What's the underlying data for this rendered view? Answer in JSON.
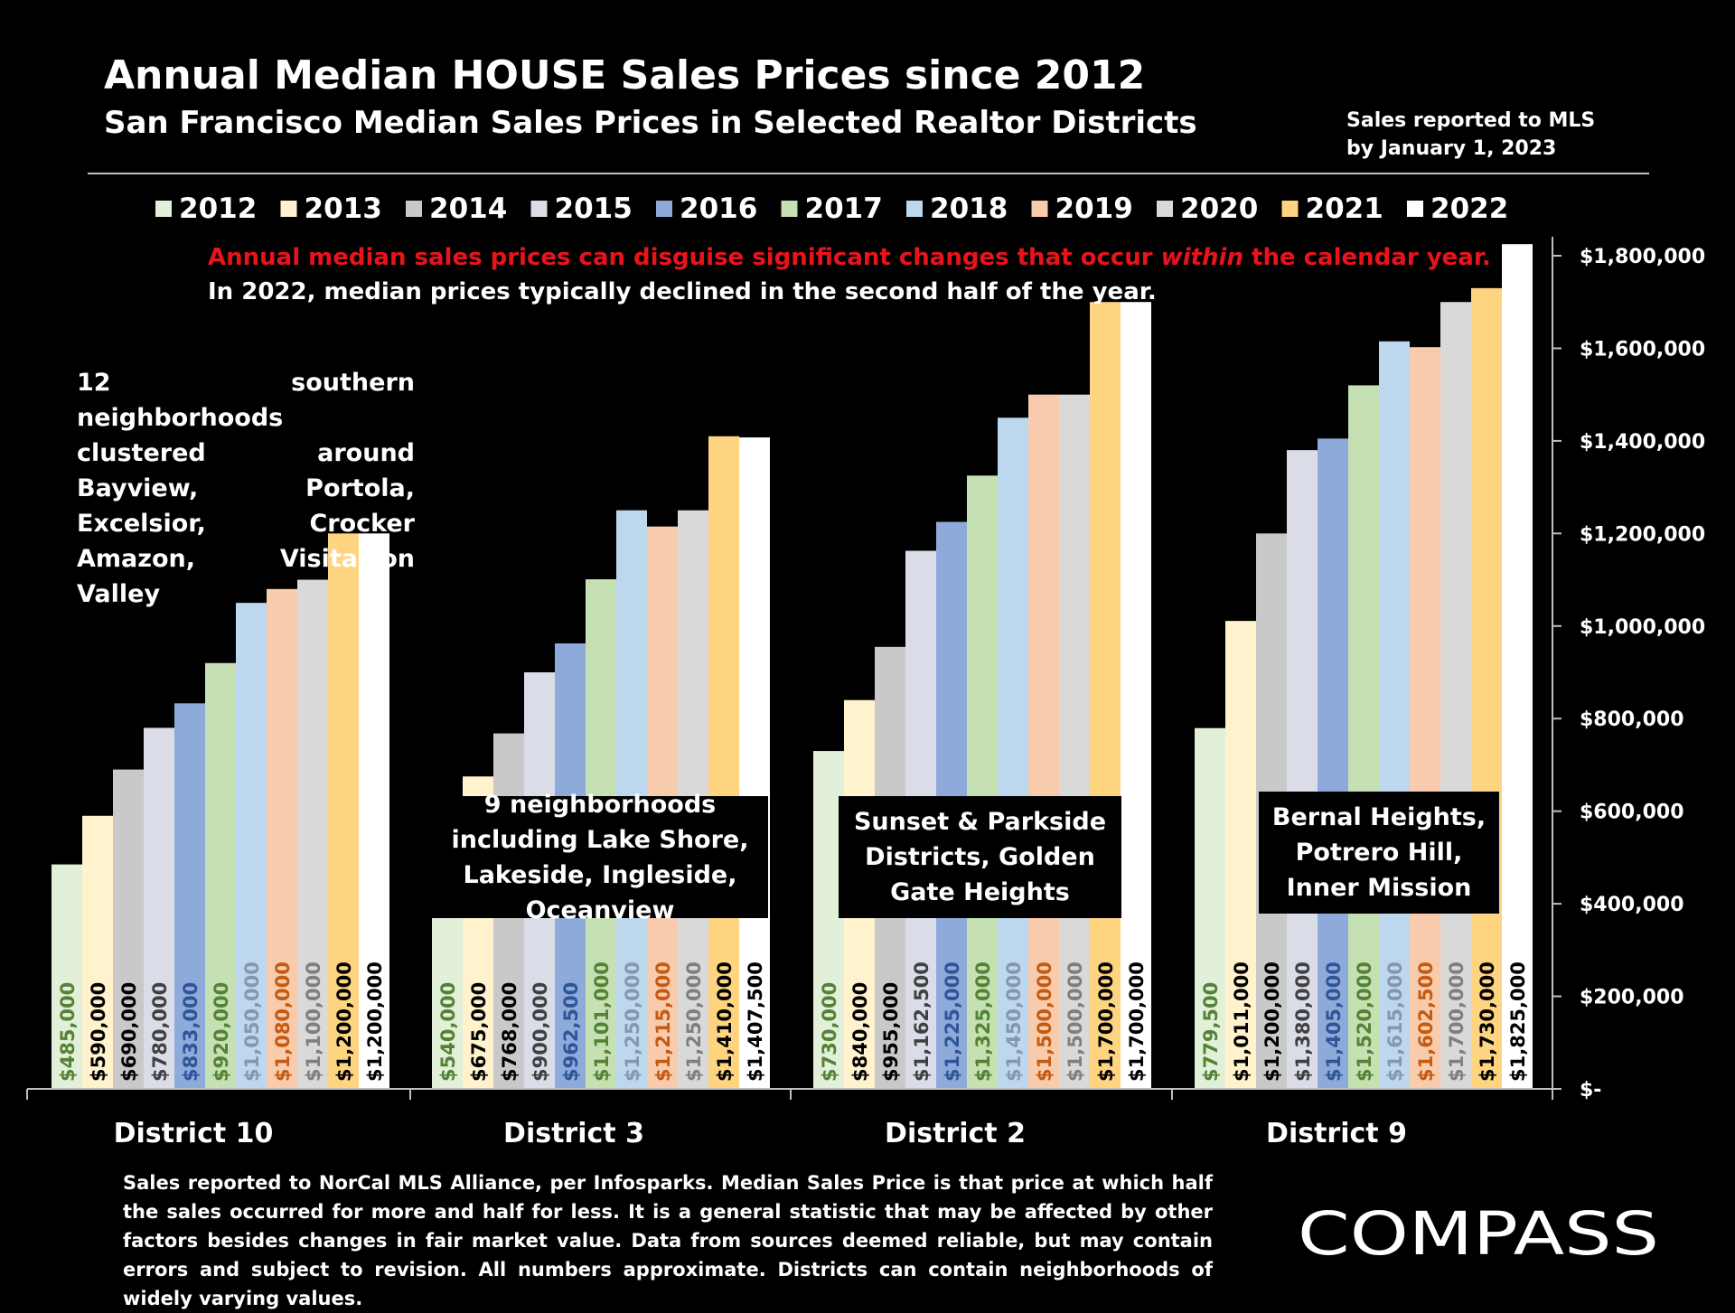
{
  "header": {
    "title": "Annual Median HOUSE Sales Prices since 2012",
    "subtitle": "San Francisco Median Sales Prices in Selected Realtor Districts",
    "source_note": "Sales reported to MLS\nby January 1, 2023"
  },
  "callout": {
    "warning_pre": "Annual median sales prices can disguise significant changes that occur ",
    "warning_em": "within",
    "warning_post": " the calendar year.",
    "info": "In 2022, median prices typically declined in the second half of the year."
  },
  "notes": {
    "district10": "12 southern neighborhoods clustered around Bayview, Portola, Excelsior, Crocker Amazon, Visitacion Valley",
    "district3": "9 neighborhoods including Lake Shore, Lakeside, Ingleside, Oceanview",
    "district2": "Sunset & Parkside Districts, Golden Gate Heights",
    "district9": "Bernal Heights, Potrero Hill, Inner Mission"
  },
  "footnote": "Sales reported to NorCal MLS Alliance, per Infosparks. Median Sales Price is that price at which half the sales occurred for more and half for less. It is a general statistic that may be affected by other factors besides changes in fair market value. Data from sources deemed reliable, but may contain errors and subject to revision.  All numbers approximate. Districts can contain neighborhoods of widely varying values.",
  "logo": {
    "text": "COMPASS"
  },
  "colors": {
    "2012": "#e2efd9",
    "2013": "#fff2cc",
    "2014": "#c9c9c9",
    "2015": "#dadde8",
    "2016": "#8eaadb",
    "2017": "#c5e0b3",
    "2018": "#bdd7ee",
    "2019": "#f8cbad",
    "2020": "#d9d9d9",
    "2021": "#ffd480",
    "2022": "#ffffff"
  },
  "label_colors": {
    "2012": "#548235",
    "2013": "#000000",
    "2014": "#000000",
    "2015": "#404040",
    "2016": "#2f5597",
    "2017": "#548235",
    "2018": "#8497b0",
    "2019": "#c55a11",
    "2020": "#7f7f7f",
    "2021": "#000000",
    "2022": "#000000"
  },
  "chart_data": {
    "type": "bar",
    "categories": [
      "District 10",
      "District 3",
      "District 2",
      "District 9"
    ],
    "series": [
      {
        "name": "2012",
        "values": [
          485000,
          540000,
          730000,
          779500
        ],
        "labels": [
          "$485,000",
          "$540,000",
          "$730,000",
          "$779,500"
        ]
      },
      {
        "name": "2013",
        "values": [
          590000,
          675000,
          840000,
          1011000
        ],
        "labels": [
          "$590,000",
          "$675,000",
          "$840,000",
          "$1,011,000"
        ]
      },
      {
        "name": "2014",
        "values": [
          690000,
          768000,
          955000,
          1200000
        ],
        "labels": [
          "$690,000",
          "$768,000",
          "$955,000",
          "$1,200,000"
        ]
      },
      {
        "name": "2015",
        "values": [
          780000,
          900000,
          1162500,
          1380000
        ],
        "labels": [
          "$780,000",
          "$900,000",
          "$1,162,500",
          "$1,380,000"
        ]
      },
      {
        "name": "2016",
        "values": [
          833000,
          962500,
          1225000,
          1405000
        ],
        "labels": [
          "$833,000",
          "$962,500",
          "$1,225,000",
          "$1,405,000"
        ]
      },
      {
        "name": "2017",
        "values": [
          920000,
          1101000,
          1325000,
          1520000
        ],
        "labels": [
          "$920,000",
          "$1,101,000",
          "$1,325,000",
          "$1,520,000"
        ]
      },
      {
        "name": "2018",
        "values": [
          1050000,
          1250000,
          1450000,
          1615000
        ],
        "labels": [
          "$1,050,000",
          "$1,250,000",
          "$1,450,000",
          "$1,615,000"
        ]
      },
      {
        "name": "2019",
        "values": [
          1080000,
          1215000,
          1500000,
          1602500
        ],
        "labels": [
          "$1,080,000",
          "$1,215,000",
          "$1,500,000",
          "$1,602,500"
        ]
      },
      {
        "name": "2020",
        "values": [
          1100000,
          1250000,
          1500000,
          1700000
        ],
        "labels": [
          "$1,100,000",
          "$1,250,000",
          "$1,500,000",
          "$1,700,000"
        ]
      },
      {
        "name": "2021",
        "values": [
          1200000,
          1410000,
          1700000,
          1730000
        ],
        "labels": [
          "$1,200,000",
          "$1,410,000",
          "$1,700,000",
          "$1,730,000"
        ]
      },
      {
        "name": "2022",
        "values": [
          1200000,
          1407500,
          1700000,
          1825000
        ],
        "labels": [
          "$1,200,000",
          "$1,407,500",
          "$1,700,000",
          "$1,825,000"
        ]
      }
    ],
    "y_ticks": [
      0,
      200000,
      400000,
      600000,
      800000,
      1000000,
      1200000,
      1400000,
      1600000,
      1800000
    ],
    "y_tick_labels": [
      "$-",
      "$200,000",
      "$400,000",
      "$600,000",
      "$800,000",
      "$1,000,000",
      "$1,200,000",
      "$1,400,000",
      "$1,600,000",
      "$1,800,000"
    ],
    "ylim": [
      0,
      1800000
    ],
    "legend": "top",
    "grid": false
  }
}
